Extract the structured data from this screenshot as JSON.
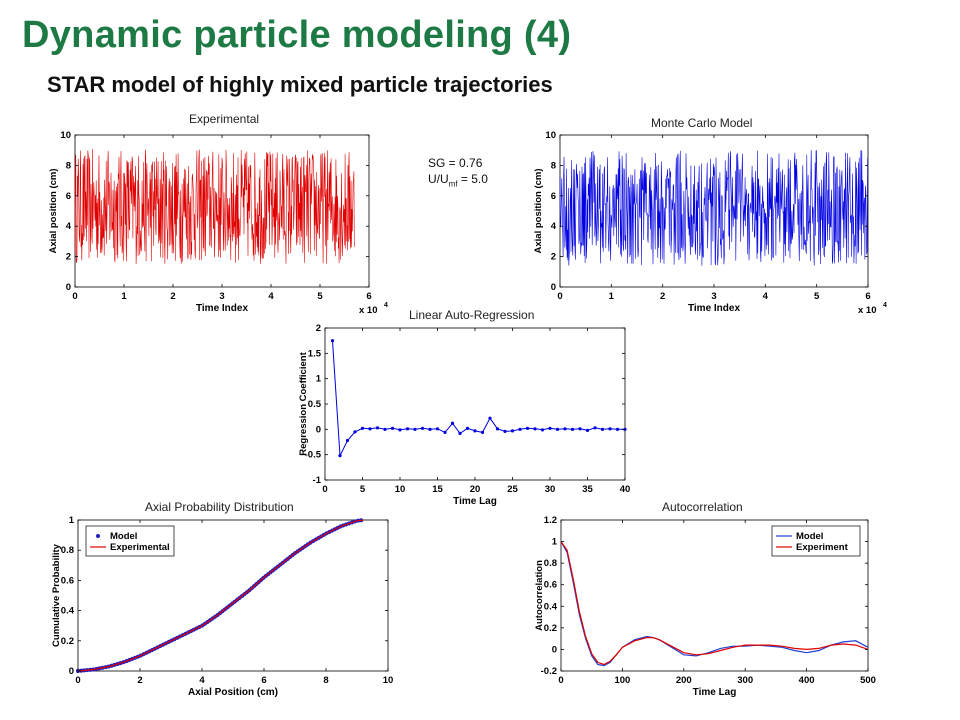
{
  "slide": {
    "title": "Dynamic particle modeling (4)",
    "subtitle": "STAR model of highly mixed  particle trajectories"
  },
  "params": {
    "sg": "SG = 0.76",
    "velocity_main": "U/U",
    "velocity_sub": "mf",
    "velocity_value": " = 5.0"
  },
  "colors": {
    "title": "#1e7a45",
    "red": "#e00000",
    "blue": "#0000e0"
  },
  "chart_data": [
    {
      "id": "exp",
      "type": "line",
      "title": "Experimental",
      "xlabel": "Time Index",
      "ylabel": "Axial position (cm)",
      "x_multiplier": "x 10",
      "x_multiplier_exp": "4",
      "xlim": [
        0,
        6
      ],
      "ylim": [
        0,
        10
      ],
      "xticks": [
        0,
        1,
        2,
        3,
        4,
        5,
        6
      ],
      "yticks": [
        0,
        2,
        4,
        6,
        8,
        10
      ],
      "x_data_max": 5.7,
      "color": "#e00000",
      "signal": "noise",
      "band": {
        "mean": 5.3,
        "amplitude": 3.8,
        "min": 0.4,
        "max": 9.2
      }
    },
    {
      "id": "mc",
      "type": "line",
      "title": "Monte Carlo  Model",
      "xlabel": "Time Index",
      "ylabel": "Axial position (cm)",
      "x_multiplier": "x 10",
      "x_multiplier_exp": "4",
      "xlim": [
        0,
        6
      ],
      "ylim": [
        0,
        10
      ],
      "xticks": [
        0,
        1,
        2,
        3,
        4,
        5,
        6
      ],
      "yticks": [
        0,
        2,
        4,
        6,
        8,
        10
      ],
      "x_data_max": 6,
      "color": "#0000e0",
      "signal": "noise",
      "band": {
        "mean": 5.2,
        "amplitude": 3.8,
        "min": 0.3,
        "max": 9.3
      }
    },
    {
      "id": "ar",
      "type": "line",
      "title": "Linear Auto-Regression",
      "xlabel": "Time Lag",
      "ylabel": "Regression Coefficient",
      "xlim": [
        0,
        40
      ],
      "ylim": [
        -1,
        2
      ],
      "xticks": [
        0,
        5,
        10,
        15,
        20,
        25,
        30,
        35,
        40
      ],
      "yticks": [
        -1,
        -0.5,
        0,
        0.5,
        1,
        1.5,
        2
      ],
      "color": "#0000e0",
      "marker": true,
      "x": [
        1,
        2,
        3,
        4,
        5,
        6,
        7,
        8,
        9,
        10,
        11,
        12,
        13,
        14,
        15,
        16,
        17,
        18,
        19,
        20,
        21,
        22,
        23,
        24,
        25,
        26,
        27,
        28,
        29,
        30,
        31,
        32,
        33,
        34,
        35,
        36,
        37,
        38,
        39,
        40
      ],
      "y": [
        1.75,
        -0.52,
        -0.22,
        -0.05,
        0.02,
        0.01,
        0.03,
        0.0,
        0.02,
        -0.01,
        0.01,
        0.0,
        0.02,
        0.0,
        0.01,
        -0.06,
        0.12,
        -0.08,
        0.02,
        -0.03,
        -0.06,
        0.22,
        0.01,
        -0.04,
        -0.03,
        0.0,
        0.02,
        0.01,
        -0.01,
        0.02,
        0.0,
        0.01,
        0.0,
        0.01,
        -0.02,
        0.03,
        0.0,
        0.01,
        0.0,
        0.0
      ]
    },
    {
      "id": "cdf",
      "type": "line",
      "title": "Axial Probability Distribution",
      "xlabel": "Axial Position (cm)",
      "ylabel": "Cumulative Probability",
      "xlim": [
        0,
        10
      ],
      "ylim": [
        0,
        1
      ],
      "xticks": [
        0,
        2,
        4,
        6,
        8,
        10
      ],
      "yticks": [
        0,
        0.2,
        0.4,
        0.6,
        0.8,
        1
      ],
      "legend": {
        "position": "top-left",
        "entries": [
          "Model",
          "Experimental"
        ]
      },
      "series": [
        {
          "name": "Model",
          "color": "#2020c0",
          "style": "dots",
          "x": [
            0,
            0.5,
            1,
            1.5,
            2,
            2.5,
            3,
            3.5,
            4,
            4.5,
            5,
            5.5,
            6,
            6.5,
            7,
            7.5,
            8,
            8.5,
            9,
            9.2
          ],
          "y": [
            0,
            0.01,
            0.03,
            0.06,
            0.1,
            0.15,
            0.2,
            0.25,
            0.3,
            0.37,
            0.45,
            0.53,
            0.62,
            0.7,
            0.78,
            0.85,
            0.91,
            0.96,
            0.995,
            1.0
          ]
        },
        {
          "name": "Experimental",
          "color": "#e00000",
          "style": "line",
          "x": [
            0,
            0.5,
            1,
            1.5,
            2,
            2.5,
            3,
            3.5,
            4,
            4.5,
            5,
            5.5,
            6,
            6.5,
            7,
            7.5,
            8,
            8.5,
            9,
            9.2
          ],
          "y": [
            0,
            0.01,
            0.03,
            0.06,
            0.1,
            0.15,
            0.2,
            0.25,
            0.3,
            0.37,
            0.45,
            0.53,
            0.62,
            0.7,
            0.78,
            0.85,
            0.91,
            0.96,
            0.995,
            1.0
          ]
        }
      ]
    },
    {
      "id": "acf",
      "type": "line",
      "title": "Autocorrelation",
      "xlabel": "Time Lag",
      "ylabel": "Autocorrelation",
      "xlim": [
        0,
        500
      ],
      "ylim": [
        -0.2,
        1.2
      ],
      "xticks": [
        0,
        100,
        200,
        300,
        400,
        500
      ],
      "yticks": [
        -0.2,
        0,
        0.2,
        0.4,
        0.6,
        0.8,
        1,
        1.2
      ],
      "legend": {
        "position": "top-right",
        "entries": [
          "Model",
          "Experiment"
        ]
      },
      "series": [
        {
          "name": "Model",
          "color": "#2040d0",
          "style": "line",
          "x": [
            0,
            10,
            20,
            30,
            40,
            50,
            60,
            70,
            80,
            90,
            100,
            120,
            140,
            150,
            160,
            180,
            200,
            220,
            240,
            260,
            280,
            300,
            320,
            340,
            360,
            380,
            400,
            420,
            440,
            460,
            480,
            500
          ],
          "y": [
            1.0,
            0.9,
            0.62,
            0.32,
            0.1,
            -0.06,
            -0.14,
            -0.15,
            -0.12,
            -0.05,
            0.02,
            0.09,
            0.12,
            0.11,
            0.09,
            0.02,
            -0.05,
            -0.06,
            -0.03,
            0.01,
            0.03,
            0.03,
            0.04,
            0.03,
            0.02,
            -0.01,
            -0.03,
            -0.01,
            0.04,
            0.07,
            0.08,
            0.02
          ]
        },
        {
          "name": "Experiment",
          "color": "#e00000",
          "style": "line",
          "x": [
            0,
            10,
            20,
            30,
            40,
            50,
            60,
            70,
            80,
            90,
            100,
            120,
            140,
            150,
            160,
            180,
            200,
            220,
            240,
            260,
            280,
            300,
            320,
            340,
            360,
            380,
            400,
            420,
            440,
            460,
            480,
            500
          ],
          "y": [
            1.0,
            0.92,
            0.65,
            0.35,
            0.12,
            -0.04,
            -0.12,
            -0.14,
            -0.11,
            -0.05,
            0.02,
            0.08,
            0.11,
            0.11,
            0.09,
            0.03,
            -0.03,
            -0.05,
            -0.04,
            -0.01,
            0.02,
            0.04,
            0.04,
            0.04,
            0.03,
            0.01,
            0.0,
            0.01,
            0.04,
            0.05,
            0.04,
            0.0
          ]
        }
      ]
    }
  ]
}
